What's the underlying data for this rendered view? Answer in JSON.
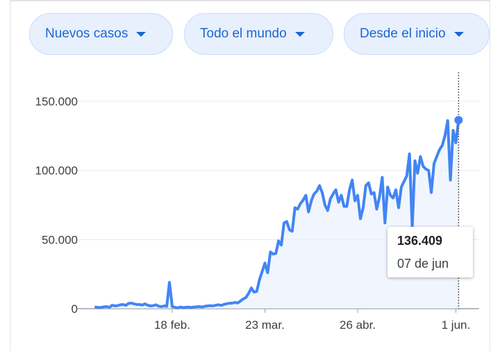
{
  "filters": {
    "metric": "Nuevos casos",
    "region": "Todo el mundo",
    "range": "Desde el inicio"
  },
  "colors": {
    "line": "#4285f4",
    "area": "#e8f0fe",
    "chip_bg": "#e8f0fe",
    "chip_text": "#1967d2",
    "grid": "#e8eaed",
    "baseline": "#9aa0a6"
  },
  "tooltip": {
    "value": "136.409",
    "date": "07 de jun"
  },
  "chart_data": {
    "type": "area",
    "title": "",
    "xlabel": "",
    "ylabel": "",
    "ylim": [
      0,
      150000
    ],
    "y_ticks": [
      0,
      50000,
      100000,
      150000
    ],
    "y_tick_labels": [
      "0",
      "50.000",
      "100.000",
      "150.000"
    ],
    "x_tick_labels": [
      {
        "day": 28,
        "label": "18 feb."
      },
      {
        "day": 62,
        "label": "23 mar."
      },
      {
        "day": 96,
        "label": "26 abr."
      },
      {
        "day": 132,
        "label": "1 jun."
      }
    ],
    "x_range": [
      0,
      138
    ],
    "grid": true,
    "series": [
      {
        "values": [
          1200,
          800,
          1000,
          1300,
          1500,
          1000,
          2500,
          2000,
          2200,
          2800,
          3000,
          2400,
          3800,
          4000,
          3500,
          3000,
          3000,
          2600,
          3500,
          2500,
          2000,
          2200,
          2800,
          1800,
          1500,
          2000,
          1700,
          19000,
          1500,
          1000,
          600,
          1200,
          800,
          1000,
          1100,
          900,
          1200,
          1300,
          1500,
          1200,
          1700,
          2000,
          2200,
          2000,
          2500,
          2800,
          2400,
          3100,
          3600,
          3900,
          4000,
          4500,
          4100,
          5500,
          7000,
          8000,
          11000,
          15000,
          12000,
          12500,
          21000,
          27000,
          33000,
          26000,
          41000,
          39500,
          40000,
          49000,
          46000,
          62000,
          63000,
          57000,
          56000,
          73000,
          72000,
          76000,
          78500,
          82000,
          70000,
          78000,
          83000,
          85000,
          89000,
          84000,
          75000,
          71000,
          79500,
          83000,
          86000,
          77000,
          82000,
          74000,
          74000,
          86000,
          93000,
          78000,
          82000,
          65000,
          73000,
          89000,
          91000,
          83000,
          84000,
          72000,
          81000,
          95000,
          62000,
          88000,
          82000,
          80000,
          86000,
          73000,
          88000,
          92000,
          96000,
          112000,
          58000,
          107000,
          98000,
          110000,
          103000,
          101000,
          100000,
          84000,
          105000,
          110000,
          115000,
          118000,
          125000,
          136000,
          93000,
          129000,
          120000,
          136409
        ]
      }
    ],
    "highlight": {
      "index": 133
    }
  }
}
